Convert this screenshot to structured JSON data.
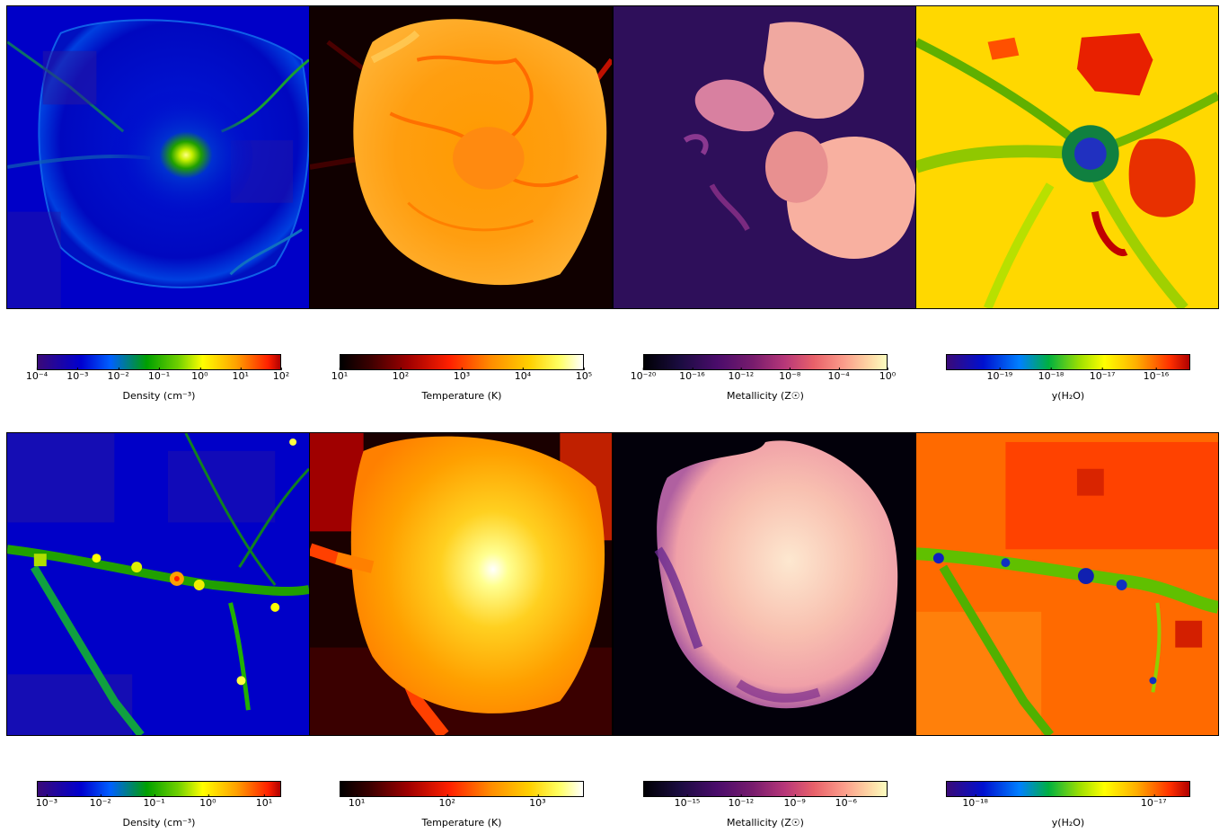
{
  "panels": [
    {
      "row": 1,
      "col": 1,
      "description_name": "density-map-top",
      "colormap": "density",
      "accent": "#0000d0"
    },
    {
      "row": 1,
      "col": 2,
      "description_name": "temperature-map-top",
      "colormap": "temp",
      "accent": "#ff8c00"
    },
    {
      "row": 1,
      "col": 3,
      "description_name": "metallicity-map-top",
      "colormap": "metal",
      "accent": "#2e0f5a"
    },
    {
      "row": 1,
      "col": 4,
      "description_name": "water-map-top",
      "colormap": "water",
      "accent": "#ffd000"
    },
    {
      "row": 2,
      "col": 1,
      "description_name": "density-map-bottom",
      "colormap": "density",
      "accent": "#0000d0"
    },
    {
      "row": 2,
      "col": 2,
      "description_name": "temperature-map-bottom",
      "colormap": "temp",
      "accent": "#ff8c00"
    },
    {
      "row": 2,
      "col": 3,
      "description_name": "metallicity-map-bottom",
      "colormap": "metal",
      "accent": "#000004"
    },
    {
      "row": 2,
      "col": 4,
      "description_name": "water-map-bottom",
      "colormap": "water",
      "accent": "#ff6a00"
    }
  ],
  "colorbars": {
    "row1": [
      {
        "label": "Density (cm⁻³)",
        "ticks": [
          "10⁻⁴",
          "10⁻³",
          "10⁻²",
          "10⁻¹",
          "10⁰",
          "10¹",
          "10²"
        ],
        "tick_pos": [
          0,
          0.1667,
          0.3333,
          0.5,
          0.6667,
          0.8333,
          1
        ]
      },
      {
        "label": "Temperature (K)",
        "ticks": [
          "10¹",
          "10²",
          "10³",
          "10⁴",
          "10⁵"
        ],
        "tick_pos": [
          0,
          0.25,
          0.5,
          0.75,
          1
        ]
      },
      {
        "label": "Metallicity (Z☉)",
        "ticks": [
          "10⁻²⁰",
          "10⁻¹⁶",
          "10⁻¹²",
          "10⁻⁸",
          "10⁻⁴",
          "10⁰"
        ],
        "tick_pos": [
          0,
          0.2,
          0.4,
          0.6,
          0.8,
          1
        ]
      },
      {
        "label": "y(H₂O)",
        "ticks": [
          "10⁻¹⁹",
          "10⁻¹⁸",
          "10⁻¹⁷",
          "10⁻¹⁶"
        ],
        "tick_pos": [
          0.22,
          0.43,
          0.64,
          0.86
        ]
      }
    ],
    "row2": [
      {
        "label": "Density (cm⁻³)",
        "ticks": [
          "10⁻³",
          "10⁻²",
          "10⁻¹",
          "10⁰",
          "10¹"
        ],
        "tick_pos": [
          0.04,
          0.26,
          0.48,
          0.7,
          0.93
        ]
      },
      {
        "label": "Temperature (K)",
        "ticks": [
          "10¹",
          "10²",
          "10³"
        ],
        "tick_pos": [
          0.07,
          0.44,
          0.81
        ]
      },
      {
        "label": "Metallicity (Z☉)",
        "ticks": [
          "10⁻¹⁵",
          "10⁻¹²",
          "10⁻⁹",
          "10⁻⁶"
        ],
        "tick_pos": [
          0.18,
          0.4,
          0.62,
          0.83
        ]
      },
      {
        "label": "y(H₂O)",
        "ticks": [
          "10⁻¹⁸",
          "10⁻¹⁷"
        ],
        "tick_pos": [
          0.12,
          0.85
        ]
      }
    ]
  }
}
